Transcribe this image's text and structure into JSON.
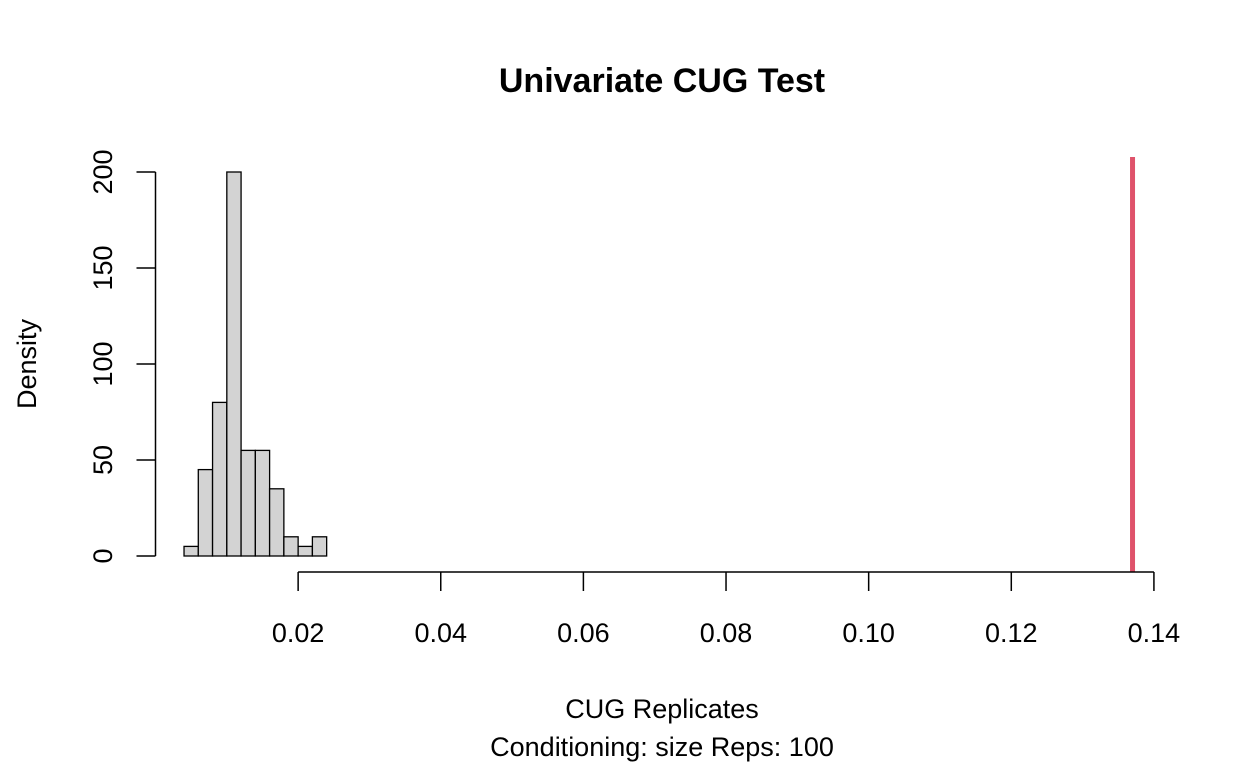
{
  "chart_data": {
    "type": "bar",
    "title": "Univariate CUG Test",
    "xlabel": "CUG Replicates",
    "subtitle": "Conditioning: size Reps: 100",
    "ylabel": "Density",
    "xlim": [
      0.0,
      0.14
    ],
    "ylim": [
      0,
      200
    ],
    "x_ticks": [
      0.02,
      0.04,
      0.06,
      0.08,
      0.1,
      0.12,
      0.14
    ],
    "x_tick_labels": [
      "0.02",
      "0.04",
      "0.06",
      "0.08",
      "0.10",
      "0.12",
      "0.14"
    ],
    "y_ticks": [
      0,
      50,
      100,
      150,
      200
    ],
    "y_tick_labels": [
      "0",
      "50",
      "100",
      "150",
      "200"
    ],
    "bins": [
      {
        "x0": 0.004,
        "x1": 0.006,
        "density": 5
      },
      {
        "x0": 0.006,
        "x1": 0.008,
        "density": 45
      },
      {
        "x0": 0.008,
        "x1": 0.01,
        "density": 80
      },
      {
        "x0": 0.01,
        "x1": 0.012,
        "density": 200
      },
      {
        "x0": 0.012,
        "x1": 0.014,
        "density": 55
      },
      {
        "x0": 0.014,
        "x1": 0.016,
        "density": 55
      },
      {
        "x0": 0.016,
        "x1": 0.018,
        "density": 35
      },
      {
        "x0": 0.018,
        "x1": 0.02,
        "density": 10
      },
      {
        "x0": 0.02,
        "x1": 0.022,
        "density": 5
      },
      {
        "x0": 0.022,
        "x1": 0.024,
        "density": 10
      }
    ],
    "observed_value": 0.137,
    "colors": {
      "bar_fill": "#d3d3d3",
      "observed_line": "#df536b"
    }
  }
}
